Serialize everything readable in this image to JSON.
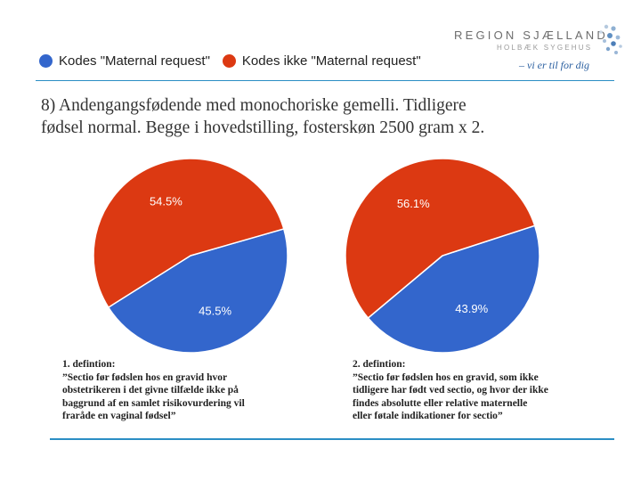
{
  "logo": {
    "name": "REGION SJÆLLAND",
    "subtitle": "HOLBÆK SYGEHUS",
    "slogan": "– vi er til for dig"
  },
  "title": {
    "line1": "8) Andengangsfødende med monochoriske gemelli. Tidligere",
    "line2": "fødsel normal. Begge i hovedstilling, fosterskøn 2500 gram x 2."
  },
  "colors": {
    "blue": "#3366cc",
    "red": "#dc3912"
  },
  "chart_data": [
    {
      "type": "pie",
      "legend": [
        "Kodes \"Maternal request\"",
        "Kodes ikke \"Maternal request\""
      ],
      "legend_position": "top",
      "slices": [
        {
          "name": "Kodes \"Maternal request\"",
          "value": 45.5,
          "label": "45.5%",
          "color": "#3366cc"
        },
        {
          "name": "Kodes ikke \"Maternal request\"",
          "value": 54.5,
          "label": "54.5%",
          "color": "#dc3912"
        }
      ]
    },
    {
      "type": "pie",
      "legend": [
        "Kodes \"Maternal request\"",
        "Kodes ikke \"Maternal request\""
      ],
      "legend_position": "top",
      "slices": [
        {
          "name": "Kodes \"Maternal request\"",
          "value": 43.9,
          "label": "43.9%",
          "color": "#3366cc"
        },
        {
          "name": "Kodes ikke \"Maternal request\"",
          "value": 56.1,
          "label": "56.1%",
          "color": "#dc3912"
        }
      ]
    }
  ],
  "definitions": [
    {
      "heading": "1. defintion:",
      "lines": [
        "”Sectio før fødslen hos en gravid hvor",
        "obstetrikeren i det givne tilfælde ikke på",
        "baggrund af en samlet risikovurdering vil",
        "fraråde en vaginal fødsel”"
      ]
    },
    {
      "heading": "2. defintion:",
      "lines": [
        "”Sectio før fødslen hos en gravid, som ikke",
        "tidligere har født ved sectio, og hvor der ikke",
        "findes absolutte eller relative maternelle",
        "eller føtale indikationer for sectio”"
      ]
    }
  ]
}
